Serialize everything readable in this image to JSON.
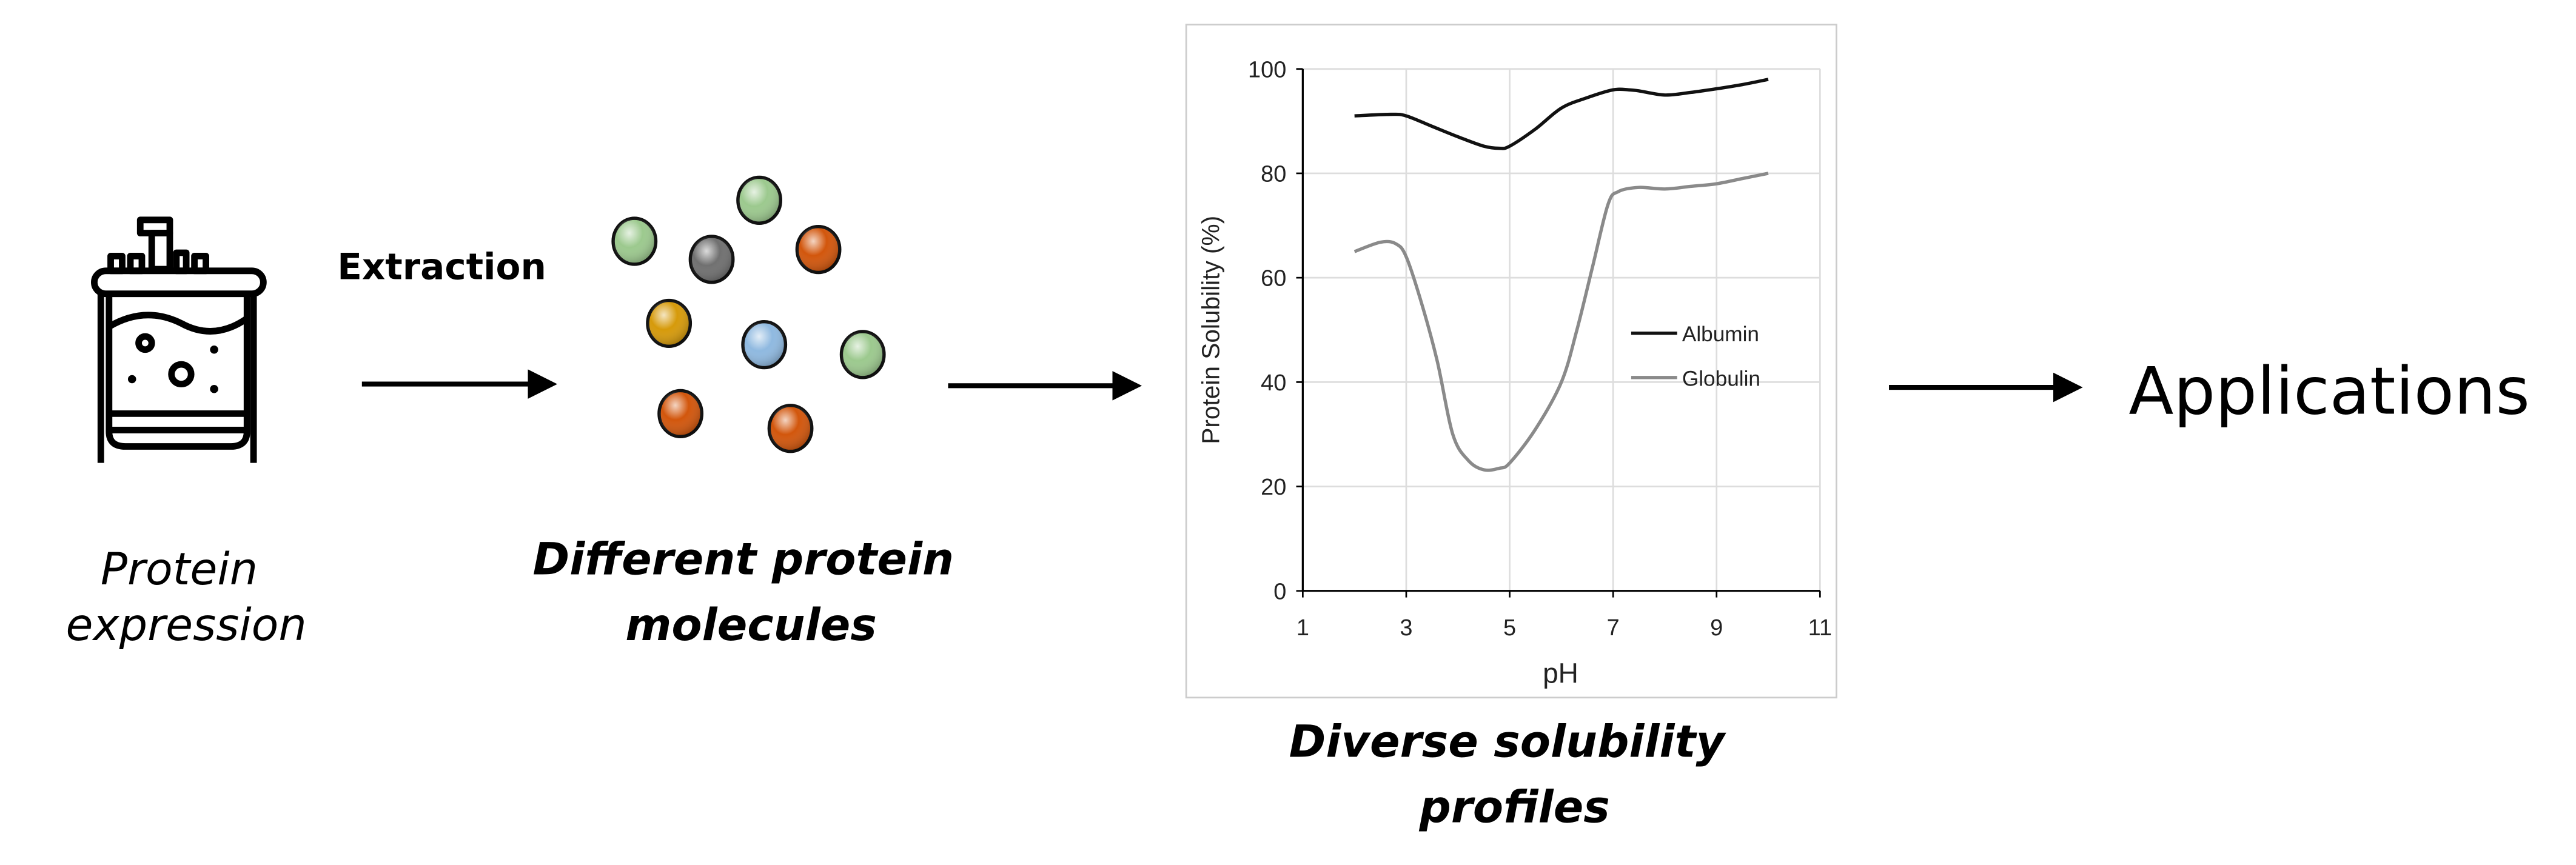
{
  "steps": {
    "source_label": [
      "Protein",
      "expression"
    ],
    "extraction_label": "Extraction",
    "molecules_label": [
      "Different protein",
      "molecules"
    ],
    "profiles_label": [
      "Diverse solubility",
      "profiles"
    ],
    "applications_label": "Applications"
  },
  "icons": {
    "source": "bioreactor-icon",
    "molecules": "protein-molecule-spheres",
    "arrows": "right-arrow-icon"
  },
  "molecule_colors": [
    "#9cc98e",
    "#9cc98e",
    "#707070",
    "#d2560c",
    "#d69a0a",
    "#8fb9e0",
    "#9cc98e",
    "#d2560c",
    "#d2560c"
  ],
  "chart_data": {
    "type": "line",
    "title": "",
    "xlabel": "pH",
    "ylabel": "Protein Solubility (%)",
    "xlim": [
      1,
      11
    ],
    "ylim": [
      0,
      100
    ],
    "xticks": [
      1,
      3,
      5,
      7,
      9,
      11
    ],
    "yticks": [
      0,
      20,
      40,
      60,
      80,
      100
    ],
    "grid": true,
    "legend_placement": "center-right",
    "series": [
      {
        "name": "Albumin",
        "color": "#111111",
        "x": [
          2,
          2.7,
          3,
          3.5,
          4,
          4.5,
          4.8,
          5,
          5.5,
          6,
          6.5,
          7,
          7.3,
          7.5,
          8,
          8.5,
          9,
          9.5,
          10
        ],
        "y": [
          91,
          91.3,
          91,
          89,
          87,
          85.2,
          84.8,
          85.2,
          88.5,
          92.5,
          94.5,
          96,
          96,
          95.8,
          95,
          95.5,
          96.2,
          97,
          98
        ]
      },
      {
        "name": "Globulin",
        "color": "#8a8a8a",
        "x": [
          2,
          2.5,
          2.8,
          3,
          3.3,
          3.6,
          3.9,
          4.2,
          4.5,
          4.8,
          5,
          5.5,
          6,
          6.3,
          6.6,
          6.9,
          7.1,
          7.5,
          8,
          8.5,
          9,
          9.5,
          10
        ],
        "y": [
          65,
          66.8,
          66.5,
          64,
          55,
          44,
          30,
          25,
          23.2,
          23.5,
          24.5,
          31,
          40,
          50,
          62,
          74,
          76.5,
          77.3,
          77,
          77.5,
          78,
          79,
          80
        ]
      }
    ]
  }
}
